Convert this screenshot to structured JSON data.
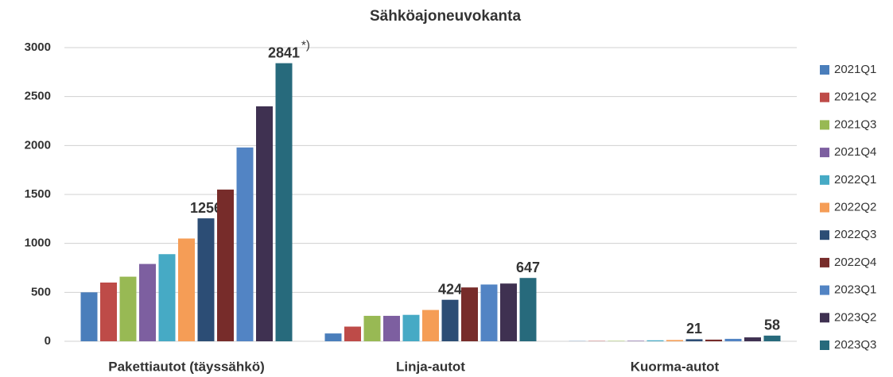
{
  "chart_data": {
    "type": "bar",
    "title": "Sähköajoneuvokanta",
    "categories": [
      "Pakettiautot (täyssähkö)",
      "Linja-autot",
      "Kuorma-autot"
    ],
    "ylim": [
      0,
      3000
    ],
    "yticks": [
      0,
      500,
      1000,
      1500,
      2000,
      2500,
      3000
    ],
    "grid": true,
    "annotation": "*)",
    "series": [
      {
        "name": "2021Q1",
        "color": "#4a7ebb",
        "values": [
          500,
          80,
          2
        ]
      },
      {
        "name": "2021Q2",
        "color": "#be4b48",
        "values": [
          600,
          150,
          3
        ]
      },
      {
        "name": "2021Q3",
        "color": "#98b954",
        "values": [
          660,
          260,
          4
        ]
      },
      {
        "name": "2021Q4",
        "color": "#7d5fa0",
        "values": [
          790,
          260,
          5
        ]
      },
      {
        "name": "2022Q1",
        "color": "#46aac5",
        "values": [
          890,
          270,
          10
        ]
      },
      {
        "name": "2022Q2",
        "color": "#f59d56",
        "values": [
          1050,
          320,
          13
        ]
      },
      {
        "name": "2022Q3",
        "color": "#2c4d75",
        "values": [
          1256,
          424,
          21
        ],
        "value_labels": [
          "1256",
          "424",
          "21"
        ]
      },
      {
        "name": "2022Q4",
        "color": "#772c2a",
        "values": [
          1550,
          550,
          17
        ]
      },
      {
        "name": "2023Q1",
        "color": "#5284c4",
        "values": [
          1980,
          580,
          25
        ]
      },
      {
        "name": "2023Q2",
        "color": "#3f3151",
        "values": [
          2400,
          590,
          40
        ]
      },
      {
        "name": "2023Q3",
        "color": "#276a7c",
        "values": [
          2841,
          647,
          58
        ],
        "value_labels": [
          "2841",
          "647",
          "58"
        ]
      }
    ]
  }
}
